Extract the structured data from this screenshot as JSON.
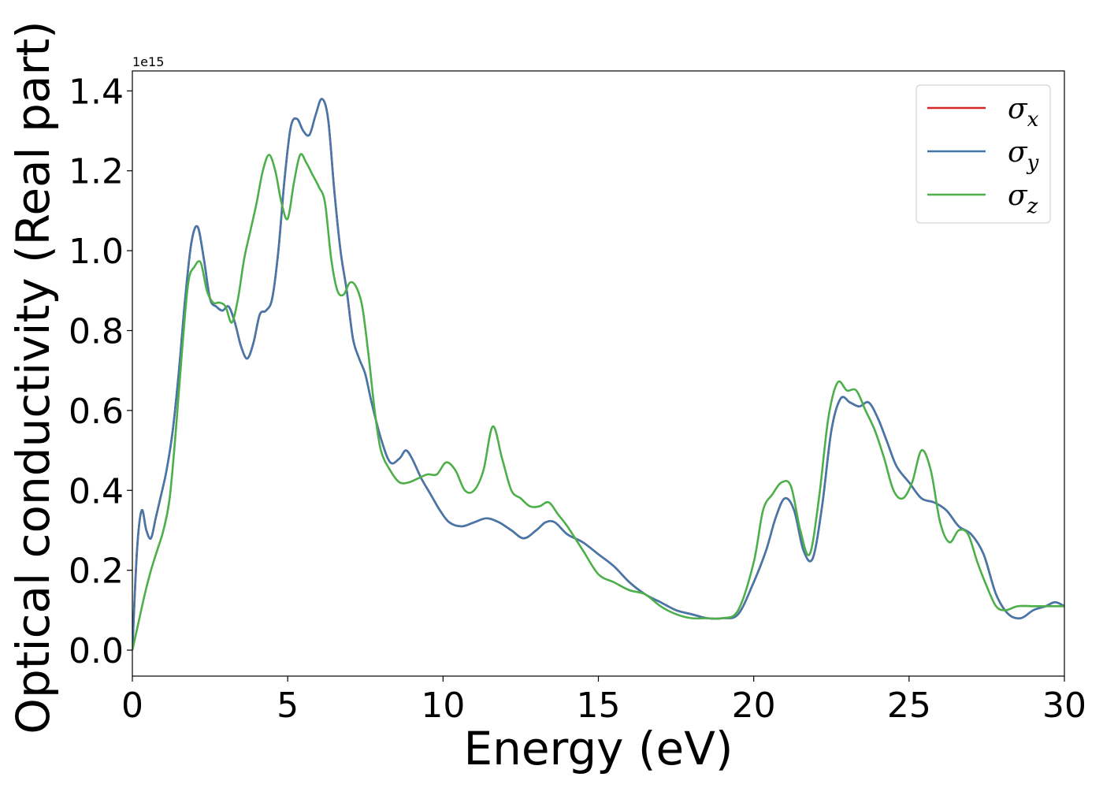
{
  "chart_data": {
    "type": "line",
    "xlabel": "Energy (eV)",
    "ylabel": "Optical conductivity (Real part)",
    "y_offset_text": "1e15",
    "y_scale_factor": 1000000000000000.0,
    "xlim": [
      0,
      30
    ],
    "ylim": [
      -0.065,
      1.45
    ],
    "xticks": [
      0,
      5,
      10,
      15,
      20,
      25,
      30
    ],
    "xtick_labels": [
      "0",
      "5",
      "10",
      "15",
      "20",
      "25",
      "30"
    ],
    "yticks": [
      0.0,
      0.2,
      0.4,
      0.6,
      0.8,
      1.0,
      1.2,
      1.4
    ],
    "ytick_labels": [
      "0.0",
      "0.2",
      "0.4",
      "0.6",
      "0.8",
      "1.0",
      "1.2",
      "1.4"
    ],
    "grid": false,
    "legend_position": "top-right",
    "series": [
      {
        "name": "σ_x",
        "legend_base": "σ",
        "legend_sub": "x",
        "color": "#d62728",
        "x": [
          0,
          0.15,
          0.3,
          0.45,
          0.6,
          0.75,
          0.9,
          1.1,
          1.3,
          1.5,
          1.7,
          1.9,
          2.1,
          2.3,
          2.5,
          2.7,
          2.9,
          3.1,
          3.3,
          3.5,
          3.7,
          3.9,
          4.1,
          4.3,
          4.5,
          4.7,
          4.9,
          5.1,
          5.3,
          5.5,
          5.7,
          5.9,
          6.1,
          6.3,
          6.5,
          6.7,
          6.9,
          7.1,
          7.3,
          7.5,
          7.7,
          8.0,
          8.3,
          8.6,
          8.8,
          9.0,
          9.3,
          9.6,
          9.9,
          10.2,
          10.6,
          11.0,
          11.4,
          11.8,
          12.2,
          12.6,
          13.0,
          13.3,
          13.6,
          14.0,
          14.5,
          15.0,
          15.5,
          16.0,
          16.5,
          17.0,
          17.5,
          18.0,
          18.5,
          19.0,
          19.5,
          20.0,
          20.4,
          20.7,
          21.0,
          21.3,
          21.6,
          21.9,
          22.2,
          22.5,
          22.8,
          23.1,
          23.4,
          23.7,
          24.0,
          24.3,
          24.6,
          25.0,
          25.4,
          25.8,
          26.2,
          26.6,
          27.0,
          27.4,
          27.8,
          28.2,
          28.6,
          29.0,
          29.4,
          29.7,
          30.0
        ],
        "values": [
          0.0,
          0.25,
          0.35,
          0.3,
          0.28,
          0.33,
          0.38,
          0.45,
          0.55,
          0.7,
          0.88,
          1.02,
          1.06,
          0.98,
          0.88,
          0.86,
          0.85,
          0.86,
          0.82,
          0.76,
          0.73,
          0.77,
          0.84,
          0.85,
          0.88,
          1.0,
          1.18,
          1.31,
          1.33,
          1.3,
          1.29,
          1.34,
          1.38,
          1.33,
          1.15,
          1.0,
          0.9,
          0.78,
          0.73,
          0.69,
          0.62,
          0.53,
          0.47,
          0.48,
          0.5,
          0.48,
          0.43,
          0.39,
          0.35,
          0.32,
          0.31,
          0.32,
          0.33,
          0.32,
          0.3,
          0.28,
          0.3,
          0.32,
          0.32,
          0.29,
          0.27,
          0.24,
          0.21,
          0.17,
          0.14,
          0.12,
          0.1,
          0.09,
          0.08,
          0.08,
          0.09,
          0.17,
          0.25,
          0.33,
          0.38,
          0.35,
          0.25,
          0.23,
          0.36,
          0.55,
          0.63,
          0.62,
          0.61,
          0.62,
          0.58,
          0.52,
          0.46,
          0.42,
          0.38,
          0.37,
          0.35,
          0.31,
          0.29,
          0.24,
          0.14,
          0.09,
          0.08,
          0.1,
          0.11,
          0.12,
          0.11
        ]
      },
      {
        "name": "σ_y",
        "legend_base": "σ",
        "legend_sub": "y",
        "color": "#4477aa",
        "x": [
          0,
          0.15,
          0.3,
          0.45,
          0.6,
          0.75,
          0.9,
          1.1,
          1.3,
          1.5,
          1.7,
          1.9,
          2.1,
          2.3,
          2.5,
          2.7,
          2.9,
          3.1,
          3.3,
          3.5,
          3.7,
          3.9,
          4.1,
          4.3,
          4.5,
          4.7,
          4.9,
          5.1,
          5.3,
          5.5,
          5.7,
          5.9,
          6.1,
          6.3,
          6.5,
          6.7,
          6.9,
          7.1,
          7.3,
          7.5,
          7.7,
          8.0,
          8.3,
          8.6,
          8.8,
          9.0,
          9.3,
          9.6,
          9.9,
          10.2,
          10.6,
          11.0,
          11.4,
          11.8,
          12.2,
          12.6,
          13.0,
          13.3,
          13.6,
          14.0,
          14.5,
          15.0,
          15.5,
          16.0,
          16.5,
          17.0,
          17.5,
          18.0,
          18.5,
          19.0,
          19.5,
          20.0,
          20.4,
          20.7,
          21.0,
          21.3,
          21.6,
          21.9,
          22.2,
          22.5,
          22.8,
          23.1,
          23.4,
          23.7,
          24.0,
          24.3,
          24.6,
          25.0,
          25.4,
          25.8,
          26.2,
          26.6,
          27.0,
          27.4,
          27.8,
          28.2,
          28.6,
          29.0,
          29.4,
          29.7,
          30.0
        ],
        "values": [
          0.0,
          0.25,
          0.35,
          0.3,
          0.28,
          0.33,
          0.38,
          0.45,
          0.55,
          0.7,
          0.88,
          1.02,
          1.06,
          0.98,
          0.88,
          0.86,
          0.85,
          0.86,
          0.82,
          0.76,
          0.73,
          0.77,
          0.84,
          0.85,
          0.88,
          1.0,
          1.18,
          1.31,
          1.33,
          1.3,
          1.29,
          1.34,
          1.38,
          1.33,
          1.15,
          1.0,
          0.9,
          0.78,
          0.73,
          0.69,
          0.62,
          0.53,
          0.47,
          0.48,
          0.5,
          0.48,
          0.43,
          0.39,
          0.35,
          0.32,
          0.31,
          0.32,
          0.33,
          0.32,
          0.3,
          0.28,
          0.3,
          0.32,
          0.32,
          0.29,
          0.27,
          0.24,
          0.21,
          0.17,
          0.14,
          0.12,
          0.1,
          0.09,
          0.08,
          0.08,
          0.09,
          0.17,
          0.25,
          0.33,
          0.38,
          0.35,
          0.25,
          0.23,
          0.36,
          0.55,
          0.63,
          0.62,
          0.61,
          0.62,
          0.58,
          0.52,
          0.46,
          0.42,
          0.38,
          0.37,
          0.35,
          0.31,
          0.29,
          0.24,
          0.14,
          0.09,
          0.08,
          0.1,
          0.11,
          0.12,
          0.11
        ]
      },
      {
        "name": "σ_z",
        "legend_base": "σ",
        "legend_sub": "z",
        "color": "#4daf4a",
        "x": [
          0,
          0.2,
          0.4,
          0.6,
          0.8,
          1.0,
          1.2,
          1.4,
          1.6,
          1.8,
          2.0,
          2.2,
          2.4,
          2.6,
          2.8,
          3.0,
          3.2,
          3.4,
          3.6,
          3.8,
          4.0,
          4.2,
          4.4,
          4.6,
          4.8,
          5.0,
          5.2,
          5.4,
          5.6,
          5.8,
          6.0,
          6.2,
          6.4,
          6.6,
          6.8,
          7.0,
          7.2,
          7.4,
          7.6,
          7.8,
          8.0,
          8.3,
          8.6,
          8.9,
          9.2,
          9.5,
          9.8,
          10.1,
          10.4,
          10.7,
          11.0,
          11.3,
          11.6,
          11.9,
          12.2,
          12.5,
          12.8,
          13.1,
          13.4,
          13.7,
          14.0,
          14.5,
          15.0,
          15.5,
          16.0,
          16.5,
          17.0,
          17.5,
          18.0,
          18.5,
          19.0,
          19.5,
          20.0,
          20.3,
          20.6,
          20.9,
          21.2,
          21.5,
          21.8,
          22.1,
          22.4,
          22.7,
          23.0,
          23.3,
          23.6,
          23.9,
          24.2,
          24.5,
          24.8,
          25.1,
          25.4,
          25.7,
          26.0,
          26.3,
          26.6,
          26.9,
          27.2,
          27.5,
          27.8,
          28.1,
          28.5,
          29.0,
          29.5,
          30.0
        ],
        "values": [
          0.0,
          0.07,
          0.14,
          0.2,
          0.25,
          0.3,
          0.38,
          0.55,
          0.75,
          0.92,
          0.96,
          0.97,
          0.9,
          0.87,
          0.87,
          0.86,
          0.82,
          0.88,
          0.98,
          1.05,
          1.12,
          1.2,
          1.24,
          1.2,
          1.12,
          1.08,
          1.17,
          1.24,
          1.22,
          1.19,
          1.16,
          1.12,
          0.98,
          0.9,
          0.89,
          0.92,
          0.91,
          0.86,
          0.74,
          0.6,
          0.5,
          0.45,
          0.42,
          0.42,
          0.43,
          0.44,
          0.44,
          0.47,
          0.45,
          0.4,
          0.4,
          0.45,
          0.56,
          0.48,
          0.4,
          0.38,
          0.36,
          0.36,
          0.37,
          0.34,
          0.31,
          0.25,
          0.19,
          0.17,
          0.15,
          0.14,
          0.11,
          0.09,
          0.08,
          0.08,
          0.08,
          0.1,
          0.22,
          0.35,
          0.39,
          0.42,
          0.41,
          0.3,
          0.24,
          0.38,
          0.58,
          0.67,
          0.65,
          0.65,
          0.6,
          0.55,
          0.48,
          0.4,
          0.38,
          0.42,
          0.5,
          0.45,
          0.32,
          0.27,
          0.3,
          0.29,
          0.22,
          0.16,
          0.11,
          0.1,
          0.11,
          0.11,
          0.11,
          0.11
        ]
      }
    ]
  }
}
